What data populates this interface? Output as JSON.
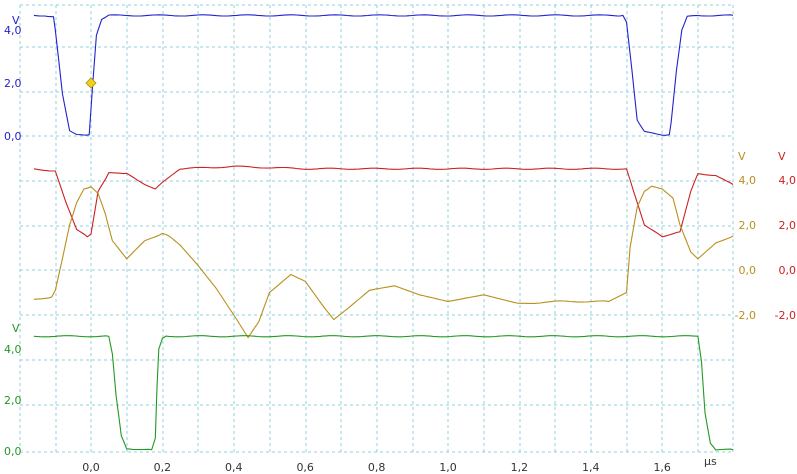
{
  "chart_data": {
    "type": "line",
    "x_unit": "µs",
    "x_ticks": [
      "0,0",
      "0,2",
      "0,4",
      "0,6",
      "0,8",
      "1,0",
      "1,2",
      "1,4",
      "1,6"
    ],
    "xlim": [
      -0.16,
      1.8
    ],
    "grid": true,
    "panels": [
      {
        "name": "top",
        "unit": "V",
        "ylim": [
          -0.5,
          5.5
        ],
        "y_ticks": [
          "4,0",
          "2,0",
          "0,0"
        ],
        "y_tick_values": [
          4,
          2,
          0
        ],
        "series": [
          {
            "color": "#2222cc",
            "x": [
              -0.16,
              -0.13,
              -0.105,
              -0.1,
              -0.08,
              -0.06,
              -0.04,
              -0.02,
              -0.005,
              0.005,
              0.015,
              0.03,
              0.05,
              0.1,
              0.5,
              1.0,
              1.3,
              1.49,
              1.5,
              1.515,
              1.53,
              1.55,
              1.6,
              1.62,
              1.625,
              1.64,
              1.655,
              1.67,
              1.7,
              1.8
            ],
            "y": [
              4.55,
              4.55,
              4.5,
              4.0,
              1.6,
              0.2,
              0.05,
              0.05,
              0.05,
              2.0,
              3.8,
              4.4,
              4.55,
              4.55,
              4.55,
              4.55,
              4.55,
              4.55,
              4.3,
              2.5,
              0.6,
              0.15,
              0.05,
              0.05,
              0.5,
              2.5,
              4.0,
              4.5,
              4.55,
              4.55
            ]
          }
        ],
        "marker": {
          "x": 0.0,
          "y": 2.0,
          "color": "#f0d020"
        }
      },
      {
        "name": "middle",
        "axes": [
          {
            "unit": "V",
            "color": "#b8901c",
            "y_ticks": [
              "4,0",
              "2,0",
              "0,0",
              "-2,0"
            ],
            "y_tick_values": [
              4,
              2,
              0,
              -2
            ]
          },
          {
            "unit": "V",
            "color": "#cc2222",
            "y_ticks": [
              "4,0",
              "2,0",
              "0,0",
              "-2,0"
            ],
            "y_tick_values": [
              4,
              2,
              0,
              -2
            ]
          }
        ],
        "ylim": [
          -3.2,
          5.6
        ],
        "series": [
          {
            "color": "#cc2222",
            "x": [
              -0.16,
              -0.1,
              -0.07,
              -0.04,
              -0.01,
              0.0,
              0.02,
              0.05,
              0.1,
              0.15,
              0.18,
              0.2,
              0.25,
              0.4,
              0.6,
              1.0,
              1.4,
              1.5,
              1.52,
              1.55,
              1.6,
              1.63,
              1.65,
              1.68,
              1.7,
              1.75,
              1.8
            ],
            "y": [
              4.5,
              4.4,
              3.0,
              1.8,
              1.5,
              1.6,
              3.5,
              4.3,
              4.3,
              3.8,
              3.6,
              3.9,
              4.5,
              4.6,
              4.5,
              4.5,
              4.5,
              4.5,
              3.5,
              2.0,
              1.5,
              1.6,
              1.7,
              3.5,
              4.3,
              4.2,
              3.8
            ]
          },
          {
            "color": "#b8901c",
            "x": [
              -0.16,
              -0.11,
              -0.1,
              -0.08,
              -0.06,
              -0.04,
              -0.02,
              0.0,
              0.02,
              0.04,
              0.06,
              0.1,
              0.15,
              0.2,
              0.22,
              0.25,
              0.3,
              0.35,
              0.4,
              0.44,
              0.47,
              0.5,
              0.56,
              0.6,
              0.65,
              0.68,
              0.72,
              0.78,
              0.85,
              0.92,
              1.0,
              1.1,
              1.2,
              1.3,
              1.45,
              1.5,
              1.51,
              1.53,
              1.55,
              1.57,
              1.6,
              1.63,
              1.65,
              1.68,
              1.7,
              1.75,
              1.8
            ],
            "y": [
              -1.3,
              -1.2,
              -0.9,
              0.5,
              2.0,
              3.0,
              3.6,
              3.7,
              3.4,
              2.5,
              1.3,
              0.5,
              1.3,
              1.6,
              1.5,
              1.1,
              0.2,
              -0.8,
              -2.0,
              -3.0,
              -2.3,
              -1.0,
              -0.2,
              -0.5,
              -1.6,
              -2.2,
              -1.7,
              -0.9,
              -0.7,
              -1.1,
              -1.4,
              -1.1,
              -1.5,
              -1.4,
              -1.4,
              -1.0,
              1.0,
              2.8,
              3.5,
              3.7,
              3.6,
              3.2,
              2.0,
              0.8,
              0.5,
              1.2,
              1.5
            ]
          }
        ]
      },
      {
        "name": "bottom",
        "unit": "V",
        "ylim": [
          -0.5,
          5.5
        ],
        "y_ticks": [
          "4,0",
          "2,0",
          "0,0"
        ],
        "y_tick_values": [
          4,
          2,
          0
        ],
        "series": [
          {
            "color": "#229922",
            "x": [
              -0.16,
              0.0,
              0.05,
              0.06,
              0.07,
              0.085,
              0.1,
              0.17,
              0.18,
              0.185,
              0.19,
              0.2,
              0.21,
              0.3,
              0.6,
              1.0,
              1.4,
              1.7,
              1.71,
              1.72,
              1.735,
              1.75,
              1.8
            ],
            "y": [
              4.5,
              4.5,
              4.5,
              3.8,
              2.2,
              0.6,
              0.1,
              0.05,
              0.5,
              2.5,
              4.0,
              4.4,
              4.5,
              4.5,
              4.5,
              4.5,
              4.5,
              4.5,
              3.5,
              1.5,
              0.3,
              0.05,
              0.05
            ]
          }
        ]
      }
    ]
  }
}
